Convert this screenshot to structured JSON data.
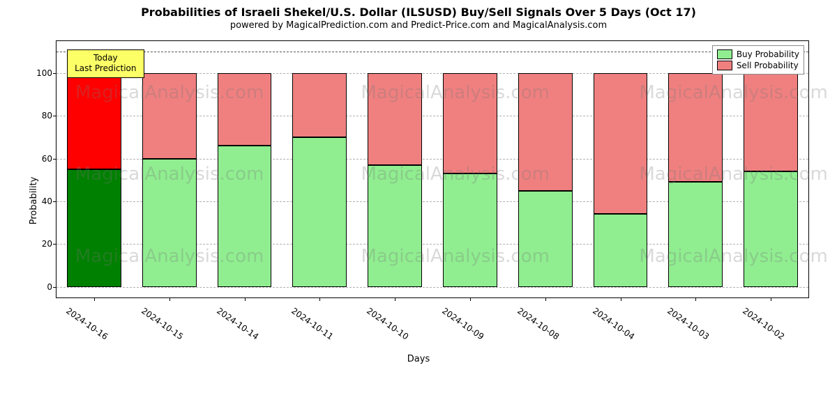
{
  "title": "Probabilities of Israeli Shekel/U.S. Dollar (ILSUSD) Buy/Sell Signals Over 5 Days (Oct 17)",
  "subtitle": "powered by MagicalPrediction.com and Predict-Price.com and MagicalAnalysis.com",
  "ylabel": "Probability",
  "xlabel": "Days",
  "ylim_min": -5,
  "ylim_max": 115,
  "yticks": [
    0,
    20,
    40,
    60,
    80,
    100
  ],
  "ref_line": 110,
  "chart_type": "stacked-bar",
  "bar_width_ratio": 0.72,
  "colors": {
    "buy": "#90ee90",
    "sell": "#f08080",
    "buy_today": "#008000",
    "sell_today": "#ff0000",
    "grid": "#b0b0b0",
    "border": "#000000",
    "background": "#ffffff",
    "annot_bg": "#fcff66"
  },
  "legend": {
    "items": [
      {
        "label": "Buy Probability",
        "color_key": "buy"
      },
      {
        "label": "Sell Probability",
        "color_key": "sell"
      }
    ]
  },
  "annotation": {
    "line1": "Today",
    "line2": "Last Prediction"
  },
  "watermark_text": "MagicalAnalysis.com",
  "watermark_positions": [
    {
      "left_pct": 5,
      "top_pct": 20
    },
    {
      "left_pct": 43,
      "top_pct": 20
    },
    {
      "left_pct": 80,
      "top_pct": 20
    },
    {
      "left_pct": 5,
      "top_pct": 52
    },
    {
      "left_pct": 43,
      "top_pct": 52
    },
    {
      "left_pct": 80,
      "top_pct": 52
    },
    {
      "left_pct": 5,
      "top_pct": 84
    },
    {
      "left_pct": 43,
      "top_pct": 84
    },
    {
      "left_pct": 80,
      "top_pct": 84
    }
  ],
  "bars": [
    {
      "date": "2024-10-16",
      "buy": 55,
      "sell": 55,
      "today": true
    },
    {
      "date": "2024-10-15",
      "buy": 60,
      "sell": 40,
      "today": false
    },
    {
      "date": "2024-10-14",
      "buy": 66,
      "sell": 34,
      "today": false
    },
    {
      "date": "2024-10-11",
      "buy": 70,
      "sell": 30,
      "today": false
    },
    {
      "date": "2024-10-10",
      "buy": 57,
      "sell": 43,
      "today": false
    },
    {
      "date": "2024-10-09",
      "buy": 53,
      "sell": 47,
      "today": false
    },
    {
      "date": "2024-10-08",
      "buy": 45,
      "sell": 55,
      "today": false
    },
    {
      "date": "2024-10-04",
      "buy": 34,
      "sell": 66,
      "today": false
    },
    {
      "date": "2024-10-03",
      "buy": 49,
      "sell": 51,
      "today": false
    },
    {
      "date": "2024-10-02",
      "buy": 54,
      "sell": 46,
      "today": false
    }
  ]
}
